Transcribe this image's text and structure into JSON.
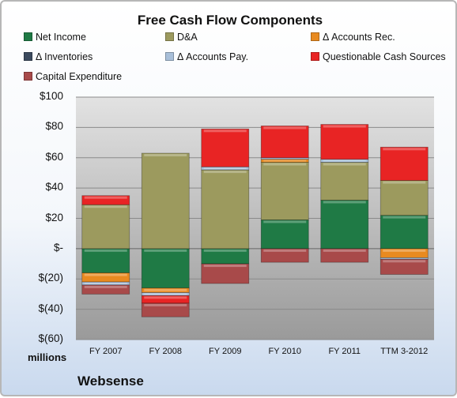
{
  "chart_data": {
    "type": "bar",
    "stacked": true,
    "title": "Free Cash Flow Components",
    "unit_label": "millions",
    "company": "Websense",
    "categories": [
      "FY 2007",
      "FY 2008",
      "FY 2009",
      "FY 2010",
      "FY 2011",
      "TTM 3-2012"
    ],
    "ylim": [
      -60,
      100
    ],
    "yticks": [
      100,
      80,
      60,
      40,
      20,
      0,
      -20,
      -40,
      -60
    ],
    "ytick_labels": [
      "$100",
      "$80",
      "$60",
      "$40",
      "$20",
      "$-",
      "$(20)",
      "$(40)",
      "$(60)"
    ],
    "grid": true,
    "legend_position": "top",
    "series": [
      {
        "name": "Net Income",
        "color": "#1f7a45",
        "values": [
          -16,
          -26,
          -10,
          19,
          32,
          22
        ]
      },
      {
        "name": "D&A",
        "color": "#9c9a5e",
        "values": [
          29,
          63,
          52,
          38,
          25,
          23
        ]
      },
      {
        "name": "Δ Accounts Rec.",
        "color": "#e88a20",
        "values": [
          -6,
          -3,
          0,
          2,
          0,
          -6
        ]
      },
      {
        "name": "Δ Inventories",
        "color": "#3b4a5e",
        "values": [
          0,
          0,
          0,
          0,
          0,
          0
        ]
      },
      {
        "name": "Δ Accounts Pay.",
        "color": "#a8bfd9",
        "values": [
          -2,
          -2,
          2,
          1,
          2,
          -1
        ]
      },
      {
        "name": "Questionable Cash Sources",
        "color": "#e82424",
        "values": [
          6,
          -5,
          25,
          21,
          23,
          22
        ]
      },
      {
        "name": "Capital Expenditure",
        "color": "#a84a4a",
        "values": [
          -6,
          -9,
          -13,
          -9,
          -9,
          -10
        ]
      }
    ]
  }
}
